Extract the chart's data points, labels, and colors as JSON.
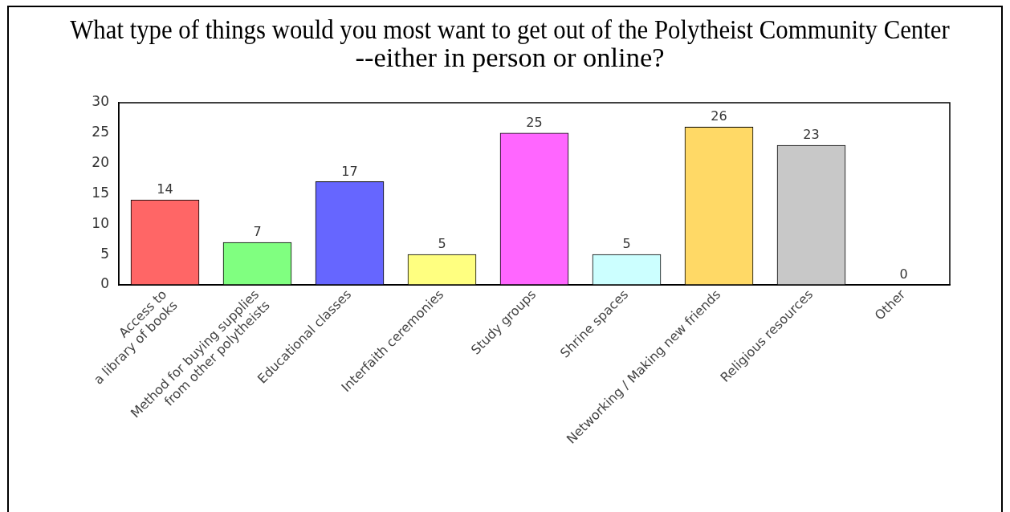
{
  "chart_data": {
    "type": "bar",
    "title": "What type of things would you most want to get out of the Polytheist Community Center --either in person or online?",
    "categories": [
      "Access to\na library of books",
      "Method for buying supplies\nfrom other polytheists",
      "Educational classes",
      "Interfaith ceremonies",
      "Study groups",
      "Shrine spaces",
      "Networking / Making new friends",
      "Religious resources",
      "Other"
    ],
    "values": [
      14,
      7,
      17,
      5,
      25,
      5,
      26,
      23,
      0
    ],
    "colors": [
      "#ff6666",
      "#80ff80",
      "#6666ff",
      "#ffff80",
      "#ff66ff",
      "#ccffff",
      "#ffd966",
      "#c8c8c8",
      null
    ],
    "ylim": [
      0,
      30
    ],
    "yticks": [
      0,
      5,
      10,
      15,
      20,
      25,
      30
    ],
    "data_labels": true
  }
}
